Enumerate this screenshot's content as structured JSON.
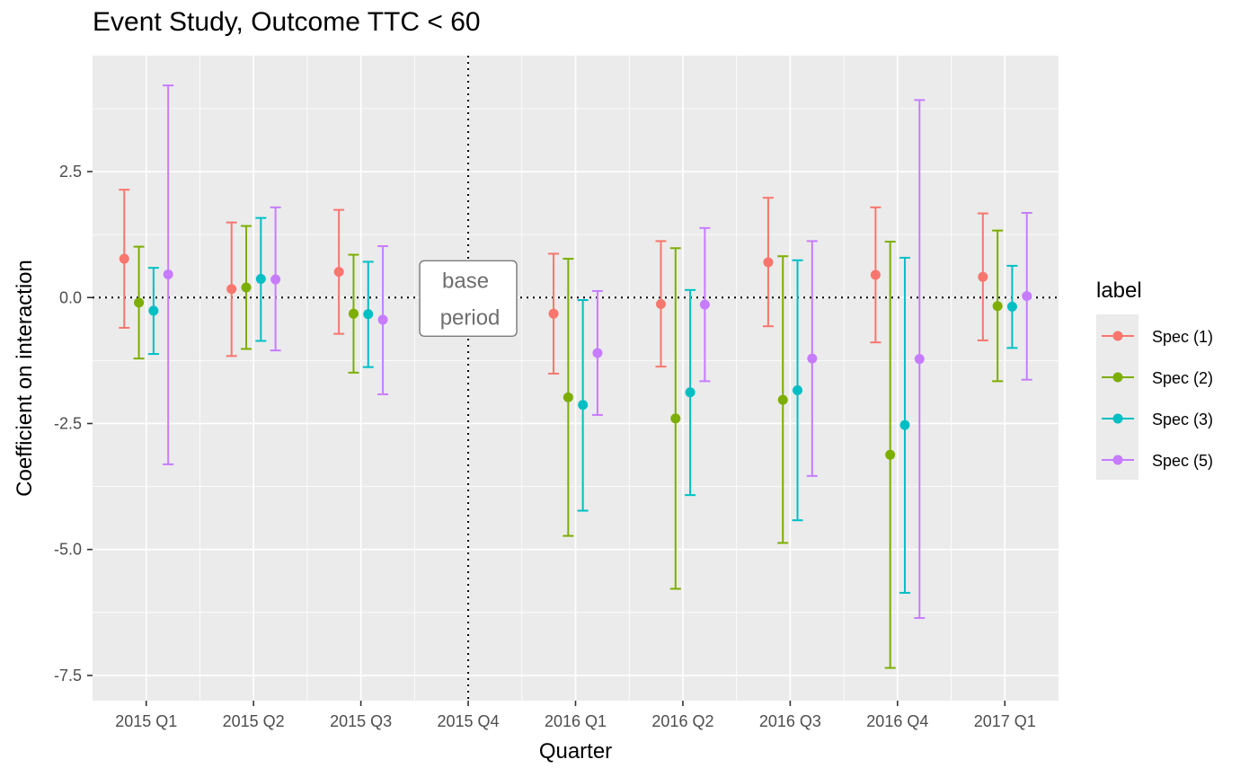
{
  "chart_data": {
    "type": "scatter",
    "title": "Event Study, Outcome TTC < 60",
    "xlabel": "Quarter",
    "ylabel": "Coefficient on interaction",
    "categories": [
      "2015 Q1",
      "2015 Q2",
      "2015 Q3",
      "2015 Q4",
      "2016 Q1",
      "2016 Q2",
      "2016 Q3",
      "2016 Q4",
      "2017 Q1"
    ],
    "ylim": [
      -8.0,
      4.8
    ],
    "yticks": [
      2.5,
      0.0,
      -2.5,
      -5.0,
      -7.5
    ],
    "ytick_labels": [
      "2.5",
      "0.0",
      "-2.5",
      "-5.0",
      "-7.5"
    ],
    "grid": true,
    "reference_line_y": 0.0,
    "reference_line_x": "2015 Q4",
    "annotation": {
      "line1": "base",
      "line2": "period",
      "x": "2015 Q4",
      "y": 0.0
    },
    "legend": {
      "title": "label",
      "position": "right"
    },
    "series": [
      {
        "name": "Spec (1)",
        "color": "#F8766D",
        "estimates": [
          0.77,
          0.17,
          0.51,
          null,
          -0.32,
          -0.13,
          0.7,
          0.45,
          0.41
        ],
        "lower": [
          -0.6,
          -1.16,
          -0.72,
          null,
          -1.51,
          -1.37,
          -0.57,
          -0.89,
          -0.85
        ],
        "upper": [
          2.14,
          1.49,
          1.74,
          null,
          0.87,
          1.12,
          1.98,
          1.79,
          1.67
        ]
      },
      {
        "name": "Spec (2)",
        "color": "#7CAE00",
        "estimates": [
          -0.1,
          0.2,
          -0.32,
          null,
          -1.98,
          -2.4,
          -2.03,
          -3.12,
          -0.17
        ],
        "lower": [
          -1.21,
          -1.02,
          -1.49,
          null,
          -4.73,
          -5.78,
          -4.87,
          -7.35,
          -1.66
        ],
        "upper": [
          1.01,
          1.42,
          0.85,
          null,
          0.77,
          0.98,
          0.82,
          1.11,
          1.33
        ]
      },
      {
        "name": "Spec (3)",
        "color": "#00BFC4",
        "estimates": [
          -0.26,
          0.37,
          -0.33,
          null,
          -2.13,
          -1.88,
          -1.84,
          -2.53,
          -0.18
        ],
        "lower": [
          -1.12,
          -0.86,
          -1.38,
          null,
          -4.23,
          -3.92,
          -4.42,
          -5.86,
          -1.0
        ],
        "upper": [
          0.59,
          1.58,
          0.71,
          null,
          -0.05,
          0.15,
          0.74,
          0.79,
          0.63
        ]
      },
      {
        "name": "Spec (5)",
        "color": "#C77CFF",
        "estimates": [
          0.46,
          0.36,
          -0.44,
          null,
          -1.1,
          -0.14,
          -1.21,
          -1.22,
          0.03
        ],
        "lower": [
          -3.31,
          -1.05,
          -1.92,
          null,
          -2.33,
          -1.66,
          -3.54,
          -6.36,
          -1.63
        ],
        "upper": [
          4.21,
          1.79,
          1.02,
          null,
          0.13,
          1.38,
          1.12,
          3.92,
          1.68
        ]
      }
    ]
  }
}
